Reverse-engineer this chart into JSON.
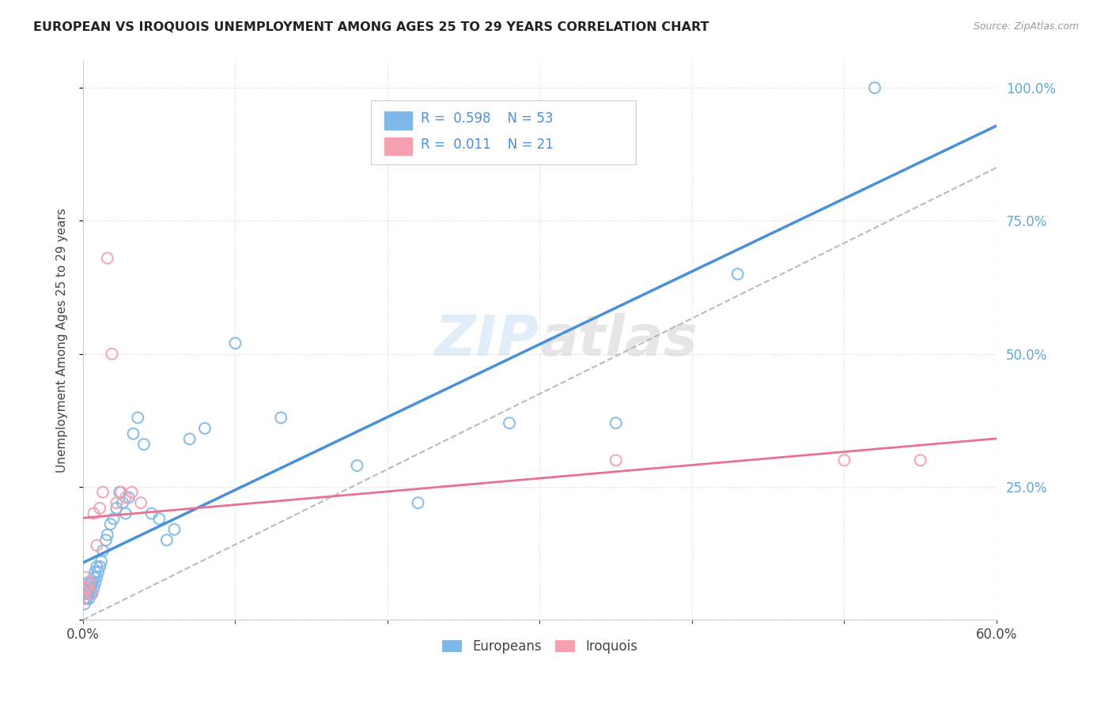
{
  "title": "EUROPEAN VS IROQUOIS UNEMPLOYMENT AMONG AGES 25 TO 29 YEARS CORRELATION CHART",
  "source": "Source: ZipAtlas.com",
  "ylabel": "Unemployment Among Ages 25 to 29 years",
  "legend_label1": "Europeans",
  "legend_label2": "Iroquois",
  "r_european": "0.598",
  "n_european": "53",
  "r_iroquois": "0.011",
  "n_iroquois": "21",
  "european_color": "#7EB8E8",
  "iroquois_color": "#F4A0B0",
  "trend_european_color": "#4A90D9",
  "trend_iroquois_color": "#E87090",
  "diagonal_color": "#BBBBBB",
  "background_color": "#FFFFFF",
  "watermark_zip": "ZIP",
  "watermark_atlas": "atlas",
  "xlim": [
    0.0,
    0.6
  ],
  "ylim": [
    0.0,
    1.05
  ],
  "european_x": [
    0.0005,
    0.001,
    0.001,
    0.0015,
    0.002,
    0.002,
    0.0025,
    0.003,
    0.003,
    0.0035,
    0.004,
    0.004,
    0.005,
    0.005,
    0.005,
    0.006,
    0.006,
    0.007,
    0.007,
    0.008,
    0.008,
    0.009,
    0.009,
    0.01,
    0.011,
    0.012,
    0.013,
    0.015,
    0.016,
    0.018,
    0.02,
    0.022,
    0.024,
    0.026,
    0.028,
    0.03,
    0.033,
    0.036,
    0.04,
    0.045,
    0.05,
    0.055,
    0.06,
    0.07,
    0.08,
    0.1,
    0.13,
    0.18,
    0.22,
    0.28,
    0.35,
    0.43,
    0.52
  ],
  "european_y": [
    0.04,
    0.03,
    0.05,
    0.04,
    0.05,
    0.06,
    0.04,
    0.05,
    0.07,
    0.05,
    0.06,
    0.04,
    0.05,
    0.07,
    0.06,
    0.07,
    0.05,
    0.06,
    0.08,
    0.07,
    0.09,
    0.08,
    0.1,
    0.09,
    0.1,
    0.11,
    0.13,
    0.15,
    0.16,
    0.18,
    0.19,
    0.21,
    0.24,
    0.22,
    0.2,
    0.23,
    0.35,
    0.38,
    0.33,
    0.2,
    0.19,
    0.15,
    0.17,
    0.34,
    0.36,
    0.52,
    0.38,
    0.29,
    0.22,
    0.37,
    0.37,
    0.65,
    1.0
  ],
  "iroquois_x": [
    0.0005,
    0.001,
    0.0015,
    0.002,
    0.003,
    0.004,
    0.005,
    0.007,
    0.009,
    0.011,
    0.013,
    0.016,
    0.019,
    0.022,
    0.025,
    0.028,
    0.032,
    0.038,
    0.35,
    0.5,
    0.55
  ],
  "iroquois_y": [
    0.04,
    0.05,
    0.06,
    0.08,
    0.06,
    0.07,
    0.05,
    0.2,
    0.14,
    0.21,
    0.24,
    0.68,
    0.5,
    0.22,
    0.24,
    0.23,
    0.24,
    0.22,
    0.3,
    0.3,
    0.3
  ]
}
